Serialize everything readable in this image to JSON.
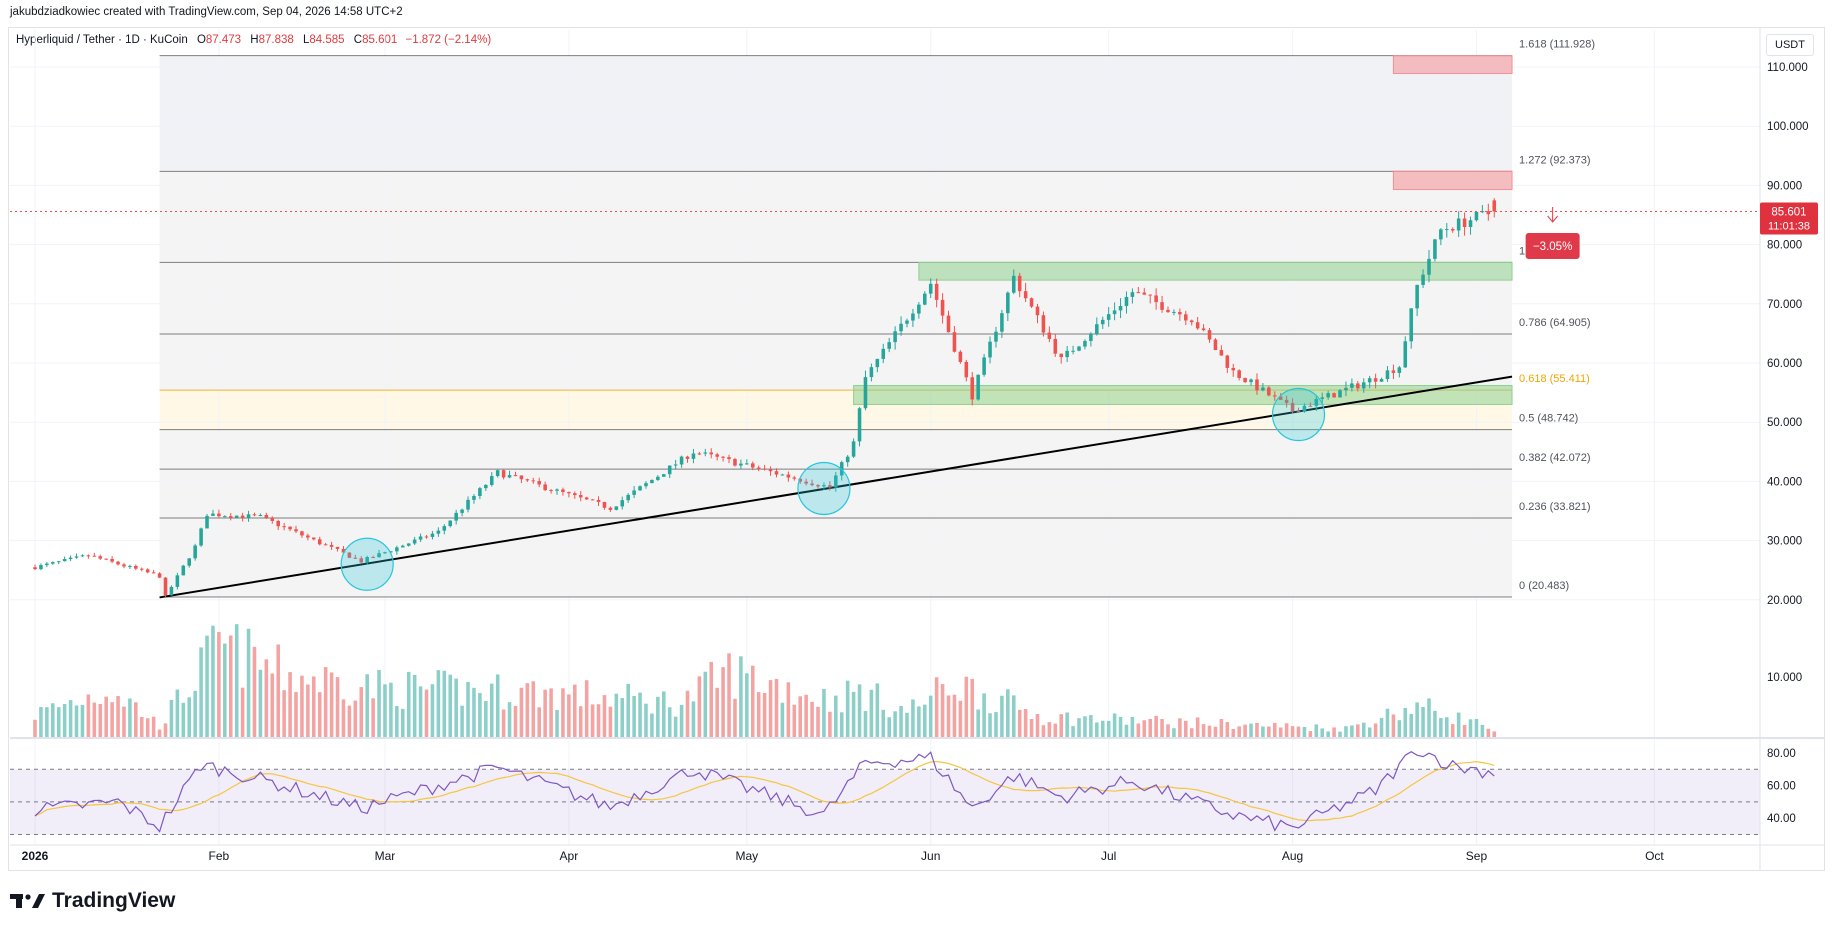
{
  "header": {
    "credit": "jakubdziadkowiec created with TradingView.com, Sep 04, 2026 14:58 UTC+2",
    "symbol": "Hyperliquid / Tether · 1D · KuCoin",
    "o_label": "O",
    "o_value": "87.473",
    "h_label": "H",
    "h_value": "87.838",
    "l_label": "L",
    "l_value": "84.585",
    "c_label": "C",
    "c_value": "85.601",
    "change": "−1.872 (−2.14%)",
    "currency_button": "USDT"
  },
  "footer": {
    "brand": "TradingView"
  },
  "price_tag": {
    "price": "85.601",
    "countdown": "11:01:38"
  },
  "measure_tag": {
    "text": "−3.05%"
  },
  "colors": {
    "up": "#26a69a",
    "down": "#ef5350",
    "vol_up": "#8ccfc8",
    "vol_down": "#f2a3a2",
    "fib_highlight": "#f0a500",
    "rsi_line": "#7e57c2",
    "rsi_ma": "#f5c542",
    "support_zone": "#8fd08f",
    "resistance_zone": "#f48f95",
    "circle": "#26c6da",
    "trendline": "#000000"
  },
  "chart_data": {
    "type": "candlestick",
    "symbol": "Hyperliquid / Tether",
    "timeframe": "1D",
    "exchange": "KuCoin",
    "ylim": [
      15,
      115
    ],
    "y_ticks": [
      "110.000",
      "100.000",
      "90.000",
      "80.000",
      "70.000",
      "60.000",
      "50.000",
      "40.000",
      "30.000",
      "20.000"
    ],
    "x_range": [
      "2026-01-01",
      "2026-10-07"
    ],
    "x_ticks": [
      {
        "label": "2026",
        "date": "2026-01-01"
      },
      {
        "label": "Feb",
        "date": "2026-02-01"
      },
      {
        "label": "Mar",
        "date": "2026-03-01"
      },
      {
        "label": "Apr",
        "date": "2026-04-01"
      },
      {
        "label": "May",
        "date": "2026-05-01"
      },
      {
        "label": "Jun",
        "date": "2026-06-01"
      },
      {
        "label": "Jul",
        "date": "2026-07-01"
      },
      {
        "label": "Aug",
        "date": "2026-08-01"
      },
      {
        "label": "Sep",
        "date": "2026-09-01"
      },
      {
        "label": "Oct",
        "date": "2026-10-01"
      }
    ],
    "price_anchors": [
      {
        "date": "2026-01-01",
        "value": 25.5
      },
      {
        "date": "2026-01-10",
        "value": 27.5
      },
      {
        "date": "2026-01-22",
        "value": 24.0
      },
      {
        "date": "2026-01-23",
        "value": 20.5
      },
      {
        "date": "2026-01-28",
        "value": 29.0
      },
      {
        "date": "2026-01-30",
        "value": 34.5
      },
      {
        "date": "2026-02-08",
        "value": 34.0
      },
      {
        "date": "2026-02-25",
        "value": 26.5
      },
      {
        "date": "2026-03-10",
        "value": 31.5
      },
      {
        "date": "2026-03-20",
        "value": 41.5
      },
      {
        "date": "2026-04-08",
        "value": 35.5
      },
      {
        "date": "2026-04-22",
        "value": 45.0
      },
      {
        "date": "2026-05-15",
        "value": 39.0
      },
      {
        "date": "2026-05-19",
        "value": 46.5
      },
      {
        "date": "2026-05-21",
        "value": 57.5
      },
      {
        "date": "2026-06-01",
        "value": 73.5
      },
      {
        "date": "2026-06-08",
        "value": 54.5
      },
      {
        "date": "2026-06-15",
        "value": 74.5
      },
      {
        "date": "2026-06-23",
        "value": 60.5
      },
      {
        "date": "2026-07-05",
        "value": 72.0
      },
      {
        "date": "2026-07-15",
        "value": 67.5
      },
      {
        "date": "2026-07-22",
        "value": 58.5
      },
      {
        "date": "2026-08-01",
        "value": 52.0
      },
      {
        "date": "2026-08-15",
        "value": 57.5
      },
      {
        "date": "2026-08-19",
        "value": 59.5
      },
      {
        "date": "2026-08-22",
        "value": 73.0
      },
      {
        "date": "2026-08-26",
        "value": 82.5
      },
      {
        "date": "2026-09-04",
        "value": 85.601
      }
    ],
    "last_candle": {
      "date": "2026-09-04",
      "open": 87.473,
      "high": 87.838,
      "low": 84.585,
      "close": 85.601
    },
    "fib_levels": [
      {
        "label": "1.618 (111.928)",
        "value": 111.928
      },
      {
        "label": "1.272 (92.373)",
        "value": 92.373
      },
      {
        "label": "1 (77.000)",
        "value": 77.0
      },
      {
        "label": "0.786 (64.905)",
        "value": 64.905
      },
      {
        "label": "0.618 (55.411)",
        "value": 55.411,
        "highlight": true
      },
      {
        "label": "0.5 (48.742)",
        "value": 48.742
      },
      {
        "label": "0.382 (42.072)",
        "value": 42.072
      },
      {
        "label": "0.236 (33.821)",
        "value": 33.821
      },
      {
        "label": "0 (20.483)",
        "value": 20.483
      }
    ],
    "fib_range": {
      "from": "2026-01-22",
      "to": "2026-09-07"
    },
    "zones": [
      {
        "kind": "resistance",
        "from": "2026-08-18",
        "to": "2026-09-07",
        "low": 108.9,
        "high": 111.9
      },
      {
        "kind": "resistance",
        "from": "2026-08-18",
        "to": "2026-09-07",
        "low": 89.3,
        "high": 92.4
      },
      {
        "kind": "support",
        "from": "2026-05-30",
        "to": "2026-09-07",
        "low": 74.0,
        "high": 77.0
      },
      {
        "kind": "support",
        "from": "2026-05-19",
        "to": "2026-09-07",
        "low": 53.0,
        "high": 56.2
      }
    ],
    "trendline": {
      "from": {
        "date": "2026-01-22",
        "value": 20.4
      },
      "to": {
        "date": "2026-09-07",
        "value": 57.7
      }
    },
    "circles": [
      {
        "date": "2026-02-26",
        "value": 26.0
      },
      {
        "date": "2026-05-14",
        "value": 38.8
      },
      {
        "date": "2026-08-02",
        "value": 51.3
      }
    ],
    "volume": {
      "ticks": [
        "10.000"
      ],
      "anchors": [
        {
          "date": "2026-01-01",
          "value": 4.0
        },
        {
          "date": "2026-01-14",
          "value": 8.5
        },
        {
          "date": "2026-01-22",
          "value": 2.0
        },
        {
          "date": "2026-02-01",
          "value": 16.0
        },
        {
          "date": "2026-02-12",
          "value": 11.0
        },
        {
          "date": "2026-03-01",
          "value": 8.5
        },
        {
          "date": "2026-03-25",
          "value": 8.0
        },
        {
          "date": "2026-04-20",
          "value": 6.0
        },
        {
          "date": "2026-04-28",
          "value": 11.5
        },
        {
          "date": "2026-05-15",
          "value": 6.5
        },
        {
          "date": "2026-05-20",
          "value": 8.0
        },
        {
          "date": "2026-05-28",
          "value": 4.5
        },
        {
          "date": "2026-06-05",
          "value": 9.5
        },
        {
          "date": "2026-06-20",
          "value": 3.5
        },
        {
          "date": "2026-07-15",
          "value": 2.5
        },
        {
          "date": "2026-08-10",
          "value": 1.5
        },
        {
          "date": "2026-08-22",
          "value": 5.5
        },
        {
          "date": "2026-09-04",
          "value": 1.5
        }
      ]
    },
    "rsi": {
      "ticks": [
        "80.00",
        "60.00",
        "40.00"
      ],
      "bands": [
        70,
        50,
        30
      ],
      "anchors": [
        {
          "date": "2026-01-01",
          "value": 45
        },
        {
          "date": "2026-01-15",
          "value": 50
        },
        {
          "date": "2026-01-22",
          "value": 35
        },
        {
          "date": "2026-01-29",
          "value": 73
        },
        {
          "date": "2026-02-10",
          "value": 62
        },
        {
          "date": "2026-02-25",
          "value": 46
        },
        {
          "date": "2026-03-20",
          "value": 71
        },
        {
          "date": "2026-04-08",
          "value": 47
        },
        {
          "date": "2026-04-22",
          "value": 70
        },
        {
          "date": "2026-05-14",
          "value": 42
        },
        {
          "date": "2026-05-21",
          "value": 74
        },
        {
          "date": "2026-06-01",
          "value": 77
        },
        {
          "date": "2026-06-08",
          "value": 46
        },
        {
          "date": "2026-06-15",
          "value": 66
        },
        {
          "date": "2026-06-23",
          "value": 53
        },
        {
          "date": "2026-07-05",
          "value": 63
        },
        {
          "date": "2026-07-22",
          "value": 42
        },
        {
          "date": "2026-08-01",
          "value": 34
        },
        {
          "date": "2026-08-15",
          "value": 57
        },
        {
          "date": "2026-08-22",
          "value": 83
        },
        {
          "date": "2026-08-28",
          "value": 72
        },
        {
          "date": "2026-09-04",
          "value": 68
        }
      ]
    }
  }
}
